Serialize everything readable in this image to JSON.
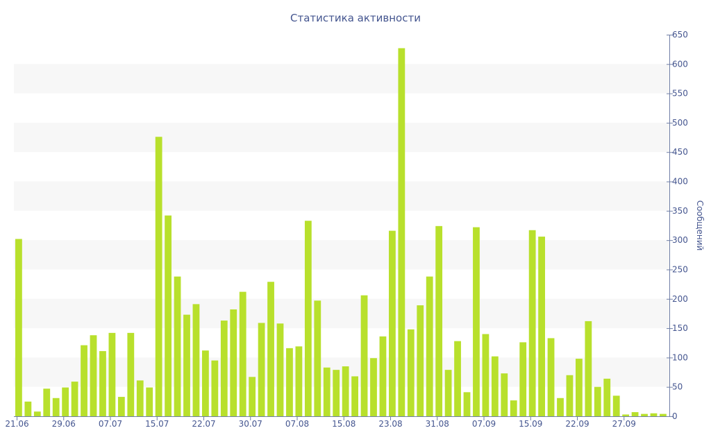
{
  "chart_data": {
    "type": "bar",
    "title": "Статистика активности",
    "ylabel": "Сообщений",
    "xlabel": "",
    "ylim": [
      0,
      650
    ],
    "y_ticks": [
      0,
      50,
      100,
      150,
      200,
      250,
      300,
      350,
      400,
      450,
      500,
      550,
      600,
      650
    ],
    "x_tick_labels": [
      {
        "label": "21.06",
        "index": 0
      },
      {
        "label": "29.06",
        "index": 5
      },
      {
        "label": "07.07",
        "index": 10
      },
      {
        "label": "15.07",
        "index": 15
      },
      {
        "label": "22.07",
        "index": 20
      },
      {
        "label": "30.07",
        "index": 25
      },
      {
        "label": "07.08",
        "index": 30
      },
      {
        "label": "15.08",
        "index": 35
      },
      {
        "label": "23.08",
        "index": 40
      },
      {
        "label": "31.08",
        "index": 45
      },
      {
        "label": "07.09",
        "index": 50
      },
      {
        "label": "15.09",
        "index": 55
      },
      {
        "label": "22.09",
        "index": 60
      },
      {
        "label": "27.09",
        "index": 65
      }
    ],
    "values": [
      302,
      25,
      8,
      47,
      31,
      49,
      59,
      121,
      138,
      111,
      142,
      33,
      142,
      61,
      49,
      476,
      342,
      238,
      173,
      191,
      112,
      95,
      163,
      182,
      212,
      67,
      159,
      229,
      158,
      116,
      119,
      333,
      197,
      83,
      79,
      85,
      68,
      206,
      99,
      136,
      316,
      627,
      148,
      189,
      238,
      324,
      79,
      128,
      41,
      322,
      140,
      102,
      73,
      27,
      126,
      317,
      306,
      133,
      31,
      70,
      98,
      162,
      50,
      64,
      35,
      3,
      7,
      4,
      5,
      4
    ],
    "grid": "alternating horizontal bands",
    "y_axis_position": "right",
    "colors": {
      "bar": "#b8e02c",
      "text": "#44558f",
      "band": "#f7f7f7"
    }
  }
}
